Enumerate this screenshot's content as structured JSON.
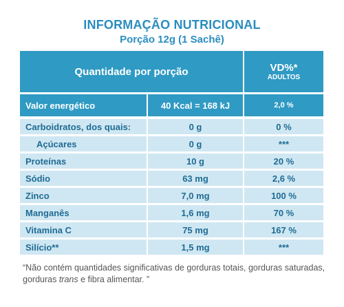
{
  "header": {
    "title": "INFORMAÇÃO NUTRICIONAL",
    "subtitle": "Porção 12g (1 Sachê)"
  },
  "table": {
    "col_qty_header": "Quantidade por porção",
    "col_vd_header": "VD%*",
    "col_vd_sub": "ADULTOS",
    "rows": [
      {
        "label": "Valor energético",
        "amount": "40 Kcal = 168 kJ",
        "vd": "2,0 %"
      },
      {
        "label": "Carboidratos, dos quais:",
        "amount": "0 g",
        "vd": "0 %"
      },
      {
        "label": "Açúcares",
        "amount": "0 g",
        "vd": "***"
      },
      {
        "label": "Proteínas",
        "amount": "10 g",
        "vd": "20 %"
      },
      {
        "label": "Sódio",
        "amount": "63 mg",
        "vd": "2,6 %"
      },
      {
        "label": "Zinco",
        "amount": "7,0 mg",
        "vd": "100 %"
      },
      {
        "label": "Manganês",
        "amount": "1,6 mg",
        "vd": "70 %"
      },
      {
        "label": "Vitamina C",
        "amount": "75 mg",
        "vd": "167 %"
      },
      {
        "label": "Silício**",
        "amount": "1,5 mg",
        "vd": "***"
      }
    ]
  },
  "footnote": {
    "part1": "“Não contém quantidades significativas de gorduras totais, gorduras saturadas, gorduras ",
    "italic": "trans",
    "part2": " e fibra alimentar. ”"
  },
  "colors": {
    "title": "#2a8dbf",
    "header_band": "#2f9ac3",
    "row_light": "#cfe7f2",
    "row_text": "#1f6b94"
  }
}
